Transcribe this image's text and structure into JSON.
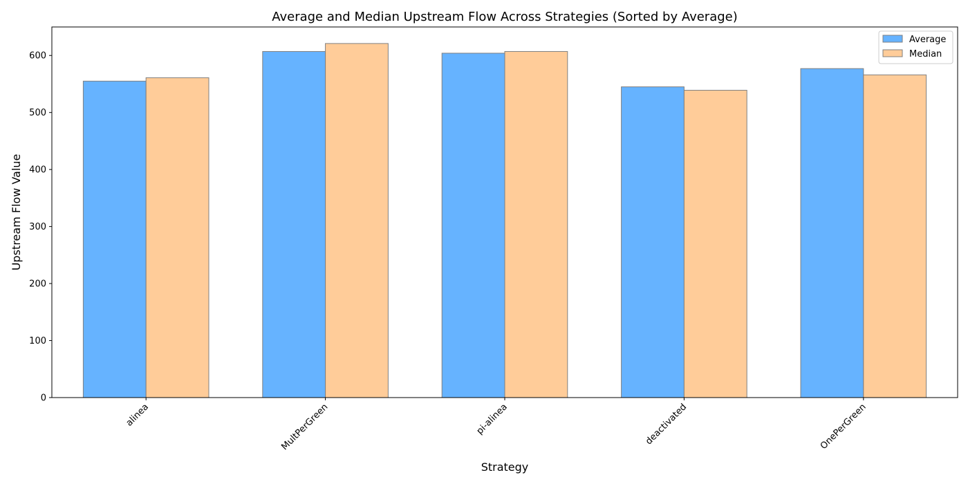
{
  "chart_data": {
    "type": "bar",
    "title": "Average and Median Upstream Flow Across Strategies (Sorted by Average)",
    "xlabel": "Strategy",
    "ylabel": "Upstream Flow Value",
    "categories": [
      "alinea",
      "MultPerGreen",
      "pi-alinea",
      "deactivated",
      "OnePerGreen"
    ],
    "series": [
      {
        "name": "Average",
        "values": [
          555,
          607,
          604,
          545,
          577
        ],
        "color": "#66b3ff"
      },
      {
        "name": "Median",
        "values": [
          561,
          621,
          607,
          539,
          566
        ],
        "color": "#ffcc99"
      }
    ],
    "ylim": [
      0,
      650
    ],
    "yticks": [
      0,
      100,
      200,
      300,
      400,
      500,
      600
    ],
    "grid": false,
    "legend_position": "top-right",
    "bar_edge_color": "#7f7f7f"
  }
}
